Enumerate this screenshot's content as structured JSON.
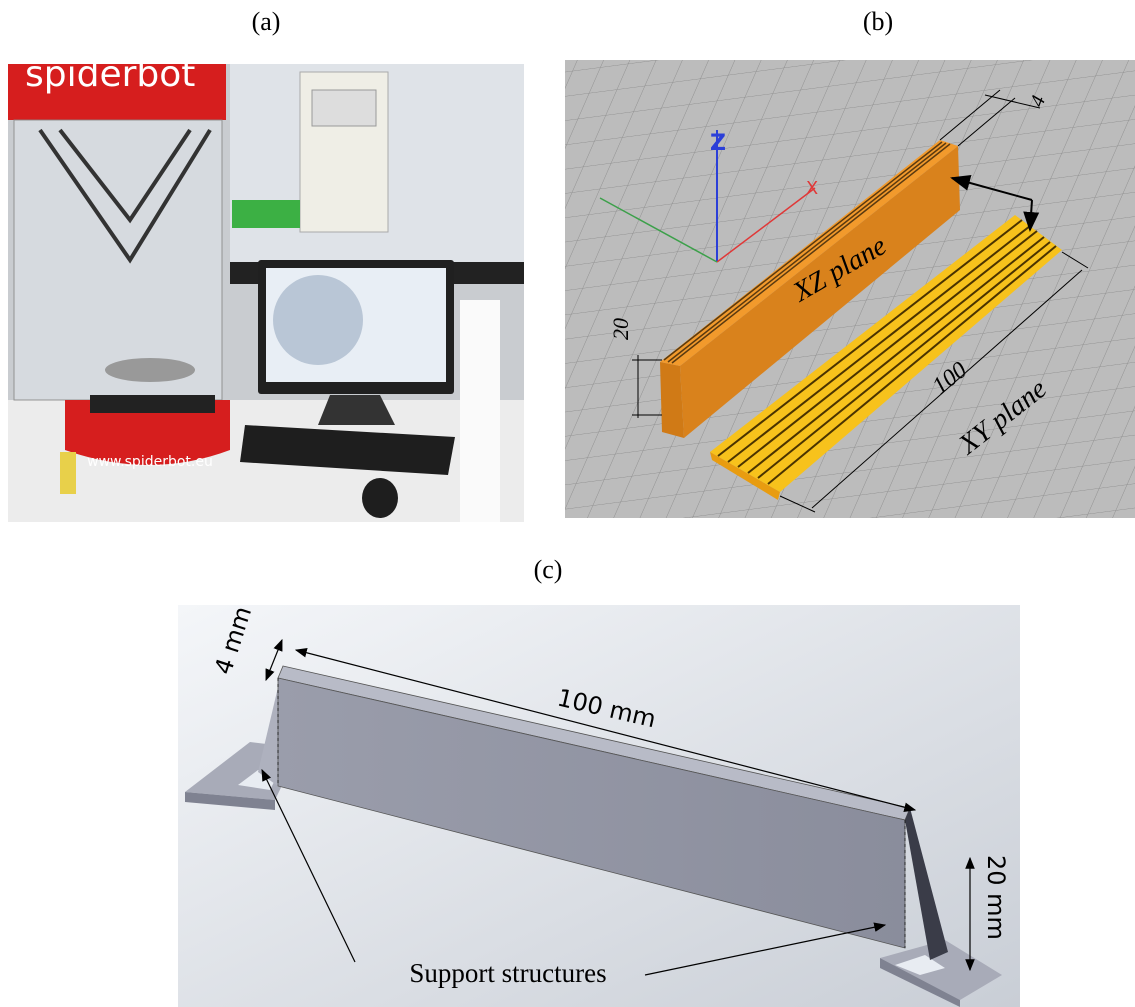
{
  "labels": {
    "a": "(a)",
    "b": "(b)",
    "c": "(c)"
  },
  "panel_a": {
    "brand": "spiderbot",
    "url": "www.spiderbot.eu"
  },
  "panel_b": {
    "axis_z": "Z",
    "axis_x": "X",
    "xz_plane": "XZ plane",
    "xy_plane": "XY plane",
    "height": "20",
    "length": "100",
    "thickness": "4"
  },
  "panel_c": {
    "thickness": "4 mm",
    "length": "100 mm",
    "height": "20 mm",
    "supports": "Support structures"
  }
}
